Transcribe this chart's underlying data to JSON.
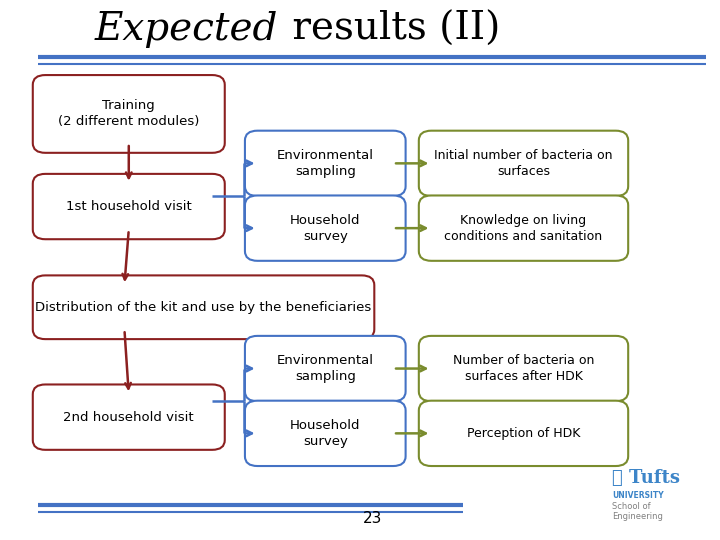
{
  "title_italic": "Expected",
  "title_normal": " results (II)",
  "title_fontsize": 28,
  "background_color": "#ffffff",
  "page_number": "23",
  "red": "#8B2020",
  "blue": "#4472C4",
  "green": "#7A8C2E",
  "tufts_blue": "#3D85C8"
}
